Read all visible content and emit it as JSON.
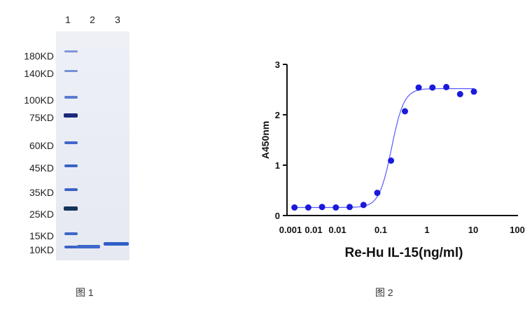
{
  "figure1": {
    "lane_numbers": [
      "1",
      "2",
      "3"
    ],
    "markers": [
      "180KD",
      "140KD",
      "100KD",
      "75KD",
      "60KD",
      "45KD",
      "35KD",
      "25KD",
      "15KD",
      "10KD"
    ],
    "caption": "图 1"
  },
  "figure2": {
    "caption": "图 2"
  },
  "chart_data": {
    "type": "scatter",
    "xlabel": "Re-Hu IL-15(ng/ml)",
    "ylabel": "A450nm",
    "xscale": "log",
    "xlim": [
      0.001,
      100
    ],
    "ylim": [
      0,
      3
    ],
    "x_tick_labels": [
      "0.001",
      "0.01",
      "0.01",
      "0.1",
      "1",
      "10",
      "100"
    ],
    "y_tick_labels": [
      "0",
      "1",
      "2",
      "3"
    ],
    "point_color": "#1a1adc",
    "curve_color": "#5a5aff",
    "series": [
      {
        "x": [
          0.00122,
          0.00244,
          0.00488,
          0.00977,
          0.0195,
          0.0391,
          0.0781,
          0.156,
          0.313,
          0.625,
          1.25,
          2.5,
          5,
          10
        ],
        "y": [
          0.16,
          0.16,
          0.17,
          0.16,
          0.17,
          0.21,
          0.45,
          1.09,
          2.07,
          2.54,
          2.54,
          2.55,
          2.41,
          2.46
        ]
      }
    ],
    "fit": {
      "bottom": 0.16,
      "top": 2.52,
      "ec50": 0.16,
      "hill": 3.2
    }
  }
}
